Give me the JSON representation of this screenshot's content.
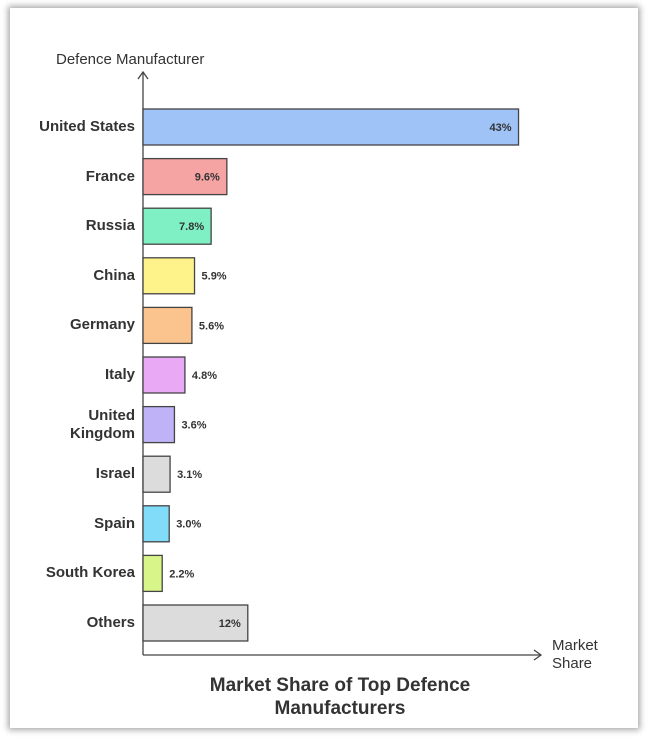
{
  "chart_data": {
    "type": "bar",
    "orientation": "horizontal",
    "title": "Market Share of Top Defence Manufacturers",
    "y_label": "Defence Manufacturer",
    "x_label": "Market Share",
    "categories": [
      "United States",
      "France",
      "Russia",
      "China",
      "Germany",
      "Italy",
      "United Kingdom",
      "Israel",
      "Spain",
      "South Korea",
      "Others"
    ],
    "values": [
      43,
      9.6,
      7.8,
      5.9,
      5.6,
      4.8,
      3.6,
      3.1,
      3.0,
      2.2,
      12
    ],
    "value_labels": [
      "43%",
      "9.6%",
      "7.8%",
      "5.9%",
      "5.6%",
      "4.8%",
      "3.6%",
      "3.1%",
      "3.0%",
      "2.2%",
      "12%"
    ],
    "colors": [
      "#9fc3f7",
      "#f6a3a3",
      "#7ff0c3",
      "#fdf38a",
      "#fbc48f",
      "#e9a9f4",
      "#bfb2f6",
      "#dcdcdc",
      "#80dcf9",
      "#d8f58a",
      "#dcdcdc"
    ],
    "xlim": [
      0,
      45
    ]
  }
}
